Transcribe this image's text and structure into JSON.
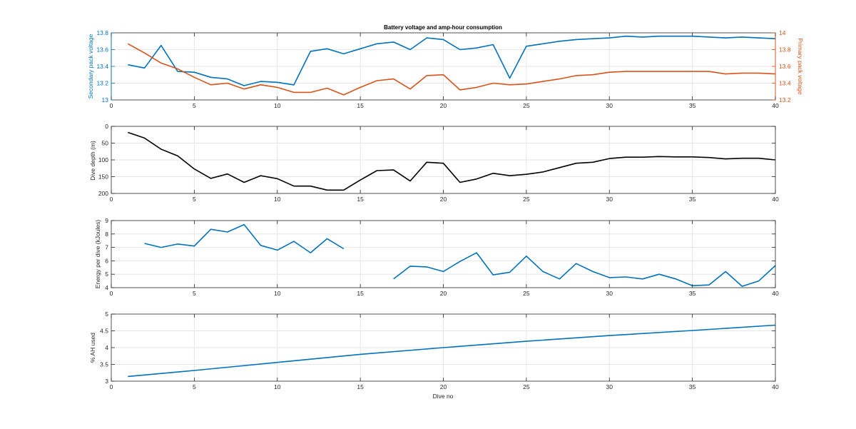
{
  "colors": {
    "blue": "#0072BD",
    "orange": "#D95319",
    "black": "#000000",
    "grid": "#e6e6e6",
    "axis": "#262626"
  },
  "chart_data": [
    {
      "type": "line",
      "title": "Battery voltage and amp-hour consumption",
      "xlabel": "",
      "ylabel": "Secondary pack voltage",
      "ylabel_right": "Primary pack voltage",
      "xlim": [
        0,
        40
      ],
      "ylim": [
        13,
        13.8
      ],
      "ylim_right": [
        13.2,
        14
      ],
      "xticks": [
        0,
        5,
        10,
        15,
        20,
        25,
        30,
        35,
        40
      ],
      "yticks": [
        13,
        13.2,
        13.4,
        13.6,
        13.8
      ],
      "yticks_right": [
        13.2,
        13.4,
        13.6,
        13.8,
        14
      ],
      "grid": true,
      "series": [
        {
          "axis": "left",
          "color": "#0072BD",
          "x": [
            1,
            2,
            3,
            4,
            5,
            6,
            7,
            8,
            9,
            10,
            11,
            12,
            13,
            14,
            15,
            16,
            17,
            18,
            19,
            20,
            21,
            22,
            23,
            24,
            25,
            26,
            27,
            28,
            29,
            30,
            31,
            32,
            33,
            34,
            35,
            36,
            37,
            38,
            39,
            40
          ],
          "values": [
            13.42,
            13.38,
            13.65,
            13.34,
            13.33,
            13.27,
            13.25,
            13.17,
            13.22,
            13.21,
            13.18,
            13.58,
            13.61,
            13.55,
            13.61,
            13.67,
            13.69,
            13.6,
            13.74,
            13.72,
            13.6,
            13.62,
            13.66,
            13.26,
            13.64,
            13.67,
            13.7,
            13.72,
            13.73,
            13.74,
            13.76,
            13.75,
            13.76,
            13.76,
            13.76,
            13.75,
            13.74,
            13.75,
            13.74,
            13.73
          ]
        },
        {
          "axis": "right",
          "color": "#D95319",
          "x": [
            1,
            2,
            3,
            4,
            5,
            6,
            7,
            8,
            9,
            10,
            11,
            12,
            13,
            14,
            15,
            16,
            17,
            18,
            19,
            20,
            21,
            22,
            23,
            24,
            25,
            26,
            27,
            28,
            29,
            30,
            31,
            32,
            33,
            34,
            35,
            36,
            37,
            38,
            39,
            40
          ],
          "values": [
            13.87,
            13.76,
            13.64,
            13.57,
            13.47,
            13.38,
            13.4,
            13.33,
            13.38,
            13.35,
            13.29,
            13.29,
            13.34,
            13.26,
            13.35,
            13.43,
            13.45,
            13.33,
            13.49,
            13.5,
            13.32,
            13.35,
            13.4,
            13.38,
            13.39,
            13.42,
            13.45,
            13.49,
            13.5,
            13.53,
            13.54,
            13.54,
            13.54,
            13.54,
            13.54,
            13.54,
            13.51,
            13.52,
            13.52,
            13.51
          ]
        }
      ]
    },
    {
      "type": "line",
      "title": "",
      "xlabel": "",
      "ylabel": "Dive depth (m)",
      "xlim": [
        0,
        40
      ],
      "ylim": [
        0,
        200
      ],
      "y_reversed": true,
      "xticks": [
        0,
        5,
        10,
        15,
        20,
        25,
        30,
        35,
        40
      ],
      "yticks": [
        0,
        50,
        100,
        150,
        200
      ],
      "grid": true,
      "series": [
        {
          "color": "#000000",
          "x": [
            1,
            2,
            3,
            4,
            5,
            6,
            7,
            8,
            9,
            10,
            11,
            12,
            13,
            14,
            15,
            16,
            17,
            18,
            19,
            20,
            21,
            22,
            23,
            24,
            25,
            26,
            27,
            28,
            29,
            30,
            31,
            32,
            33,
            34,
            35,
            36,
            37,
            38,
            39,
            40
          ],
          "values": [
            18,
            35,
            68,
            88,
            127,
            155,
            142,
            167,
            147,
            156,
            178,
            178,
            190,
            190,
            160,
            132,
            130,
            163,
            107,
            110,
            167,
            157,
            140,
            147,
            143,
            136,
            123,
            110,
            107,
            96,
            92,
            92,
            90,
            91,
            91,
            93,
            97,
            95,
            95,
            100
          ]
        }
      ]
    },
    {
      "type": "line",
      "title": "",
      "xlabel": "",
      "ylabel": "Energy per dive (kJoules)",
      "xlim": [
        0,
        40
      ],
      "ylim": [
        4,
        9
      ],
      "xticks": [
        0,
        5,
        10,
        15,
        20,
        25,
        30,
        35,
        40
      ],
      "yticks": [
        4,
        5,
        6,
        7,
        8,
        9
      ],
      "grid": true,
      "series": [
        {
          "color": "#0072BD",
          "x": [
            2,
            3,
            4,
            5,
            6,
            7,
            8,
            9,
            10,
            11,
            12,
            13,
            14
          ],
          "values": [
            7.3,
            7.0,
            7.25,
            7.1,
            8.35,
            8.15,
            8.7,
            7.15,
            6.8,
            7.45,
            6.6,
            7.65,
            6.9
          ]
        },
        {
          "color": "#0072BD",
          "x": [
            17,
            18,
            19,
            20,
            21,
            22,
            23,
            24,
            25,
            26,
            27,
            28,
            29,
            30,
            31,
            32,
            33,
            34,
            35,
            36,
            37,
            38,
            39,
            40
          ],
          "values": [
            4.65,
            5.6,
            5.55,
            5.2,
            5.95,
            6.6,
            4.95,
            5.15,
            6.35,
            5.2,
            4.65,
            5.8,
            5.2,
            4.75,
            4.8,
            4.65,
            5.0,
            4.65,
            4.15,
            4.2,
            5.2,
            4.1,
            4.5,
            5.65
          ]
        }
      ]
    },
    {
      "type": "line",
      "title": "",
      "xlabel": "Dive no",
      "ylabel": "% AH used",
      "xlim": [
        0,
        40
      ],
      "ylim": [
        3,
        5
      ],
      "xticks": [
        0,
        5,
        10,
        15,
        20,
        25,
        30,
        35,
        40
      ],
      "yticks": [
        3,
        3.5,
        4,
        4.5,
        5
      ],
      "grid": true,
      "series": [
        {
          "color": "#0072BD",
          "x": [
            1,
            5,
            10,
            15,
            20,
            25,
            30,
            35,
            40
          ],
          "values": [
            3.14,
            3.32,
            3.56,
            3.8,
            4.0,
            4.19,
            4.36,
            4.51,
            4.67
          ]
        }
      ]
    }
  ]
}
